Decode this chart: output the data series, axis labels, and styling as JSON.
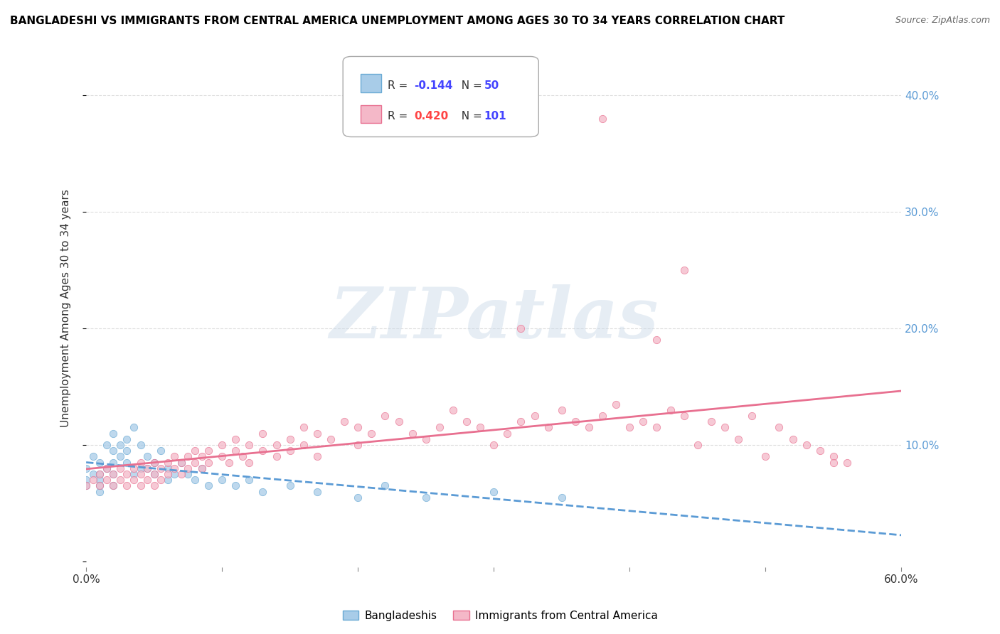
{
  "title": "BANGLADESHI VS IMMIGRANTS FROM CENTRAL AMERICA UNEMPLOYMENT AMONG AGES 30 TO 34 YEARS CORRELATION CHART",
  "source": "Source: ZipAtlas.com",
  "ylabel": "Unemployment Among Ages 30 to 34 years",
  "xlim": [
    0.0,
    0.6
  ],
  "ylim": [
    -0.005,
    0.44
  ],
  "x_tick_positions": [
    0.0,
    0.1,
    0.2,
    0.3,
    0.4,
    0.5,
    0.6
  ],
  "x_tick_labels": [
    "0.0%",
    "",
    "",
    "",
    "",
    "",
    "60.0%"
  ],
  "y_tick_positions": [
    0.0,
    0.1,
    0.2,
    0.3,
    0.4
  ],
  "y_tick_labels_right": [
    "",
    "10.0%",
    "20.0%",
    "30.0%",
    "40.0%"
  ],
  "series": [
    {
      "label": "Bangladeshis",
      "R": -0.144,
      "N": 50,
      "color": "#a8cce8",
      "edge_color": "#6aaad4",
      "x": [
        0.0,
        0.0,
        0.0,
        0.005,
        0.005,
        0.01,
        0.01,
        0.01,
        0.01,
        0.01,
        0.015,
        0.015,
        0.02,
        0.02,
        0.02,
        0.02,
        0.02,
        0.025,
        0.025,
        0.03,
        0.03,
        0.03,
        0.035,
        0.035,
        0.04,
        0.04,
        0.045,
        0.045,
        0.05,
        0.05,
        0.055,
        0.06,
        0.06,
        0.065,
        0.07,
        0.075,
        0.08,
        0.085,
        0.09,
        0.1,
        0.11,
        0.12,
        0.13,
        0.15,
        0.17,
        0.2,
        0.22,
        0.25,
        0.3,
        0.35
      ],
      "y": [
        0.07,
        0.08,
        0.065,
        0.075,
        0.09,
        0.06,
        0.075,
        0.085,
        0.07,
        0.065,
        0.08,
        0.1,
        0.095,
        0.085,
        0.075,
        0.11,
        0.065,
        0.09,
        0.1,
        0.095,
        0.105,
        0.085,
        0.115,
        0.075,
        0.08,
        0.1,
        0.09,
        0.08,
        0.085,
        0.075,
        0.095,
        0.07,
        0.08,
        0.075,
        0.085,
        0.075,
        0.07,
        0.08,
        0.065,
        0.07,
        0.065,
        0.07,
        0.06,
        0.065,
        0.06,
        0.055,
        0.065,
        0.055,
        0.06,
        0.055
      ],
      "trend_color": "#5b9bd5",
      "trend_style": "--"
    },
    {
      "label": "Immigrants from Central America",
      "R": 0.42,
      "N": 101,
      "color": "#f4b8c8",
      "edge_color": "#e87090",
      "x": [
        0.0,
        0.005,
        0.01,
        0.01,
        0.015,
        0.015,
        0.02,
        0.02,
        0.025,
        0.025,
        0.03,
        0.03,
        0.035,
        0.035,
        0.04,
        0.04,
        0.04,
        0.045,
        0.045,
        0.05,
        0.05,
        0.05,
        0.055,
        0.055,
        0.06,
        0.06,
        0.065,
        0.065,
        0.07,
        0.07,
        0.075,
        0.075,
        0.08,
        0.08,
        0.085,
        0.085,
        0.09,
        0.09,
        0.1,
        0.1,
        0.105,
        0.11,
        0.11,
        0.115,
        0.12,
        0.12,
        0.13,
        0.13,
        0.14,
        0.14,
        0.15,
        0.15,
        0.16,
        0.16,
        0.17,
        0.17,
        0.18,
        0.19,
        0.2,
        0.2,
        0.21,
        0.22,
        0.23,
        0.24,
        0.25,
        0.26,
        0.27,
        0.28,
        0.29,
        0.3,
        0.31,
        0.32,
        0.33,
        0.34,
        0.35,
        0.36,
        0.37,
        0.38,
        0.39,
        0.4,
        0.41,
        0.42,
        0.43,
        0.44,
        0.45,
        0.46,
        0.47,
        0.48,
        0.49,
        0.5,
        0.51,
        0.52,
        0.53,
        0.54,
        0.55,
        0.56,
        0.42,
        0.44,
        0.32,
        0.55,
        0.38
      ],
      "y": [
        0.065,
        0.07,
        0.065,
        0.075,
        0.07,
        0.08,
        0.065,
        0.075,
        0.07,
        0.08,
        0.065,
        0.075,
        0.08,
        0.07,
        0.075,
        0.065,
        0.085,
        0.07,
        0.08,
        0.075,
        0.065,
        0.085,
        0.08,
        0.07,
        0.085,
        0.075,
        0.08,
        0.09,
        0.085,
        0.075,
        0.09,
        0.08,
        0.085,
        0.095,
        0.09,
        0.08,
        0.095,
        0.085,
        0.09,
        0.1,
        0.085,
        0.095,
        0.105,
        0.09,
        0.1,
        0.085,
        0.095,
        0.11,
        0.1,
        0.09,
        0.105,
        0.095,
        0.1,
        0.115,
        0.11,
        0.09,
        0.105,
        0.12,
        0.115,
        0.1,
        0.11,
        0.125,
        0.12,
        0.11,
        0.105,
        0.115,
        0.13,
        0.12,
        0.115,
        0.1,
        0.11,
        0.12,
        0.125,
        0.115,
        0.13,
        0.12,
        0.115,
        0.125,
        0.135,
        0.115,
        0.12,
        0.115,
        0.13,
        0.125,
        0.1,
        0.12,
        0.115,
        0.105,
        0.125,
        0.09,
        0.115,
        0.105,
        0.1,
        0.095,
        0.09,
        0.085,
        0.19,
        0.25,
        0.2,
        0.085,
        0.38
      ],
      "trend_color": "#e87090",
      "trend_style": "-"
    }
  ],
  "watermark_text": "ZIPatlas",
  "watermark_color": "#c8d8e8",
  "watermark_alpha": 0.45,
  "background_color": "#ffffff",
  "grid_color": "#dddddd",
  "marker_size": 55,
  "marker_alpha": 0.75,
  "legend_R_color_neg": "#4444ff",
  "legend_R_color_pos": "#ff4444",
  "legend_N_color": "#4444ff"
}
